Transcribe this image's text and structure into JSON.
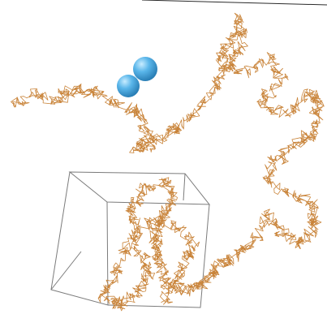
{
  "scene": {
    "background": "#ffffff",
    "colors": {
      "chain": "#c9843a",
      "box": "#7a7a7a",
      "sphere_light": "#a7dcff",
      "sphere_mid": "#56b2e6",
      "sphere_dark": "#2f86bd",
      "top_line": "#2a2a2a"
    },
    "objects": [
      {
        "name": "polymer-chain",
        "kind": "random walk"
      },
      {
        "name": "wireframe-box",
        "kind": "cube outline"
      },
      {
        "name": "sphere-pair",
        "count": 2
      }
    ]
  }
}
